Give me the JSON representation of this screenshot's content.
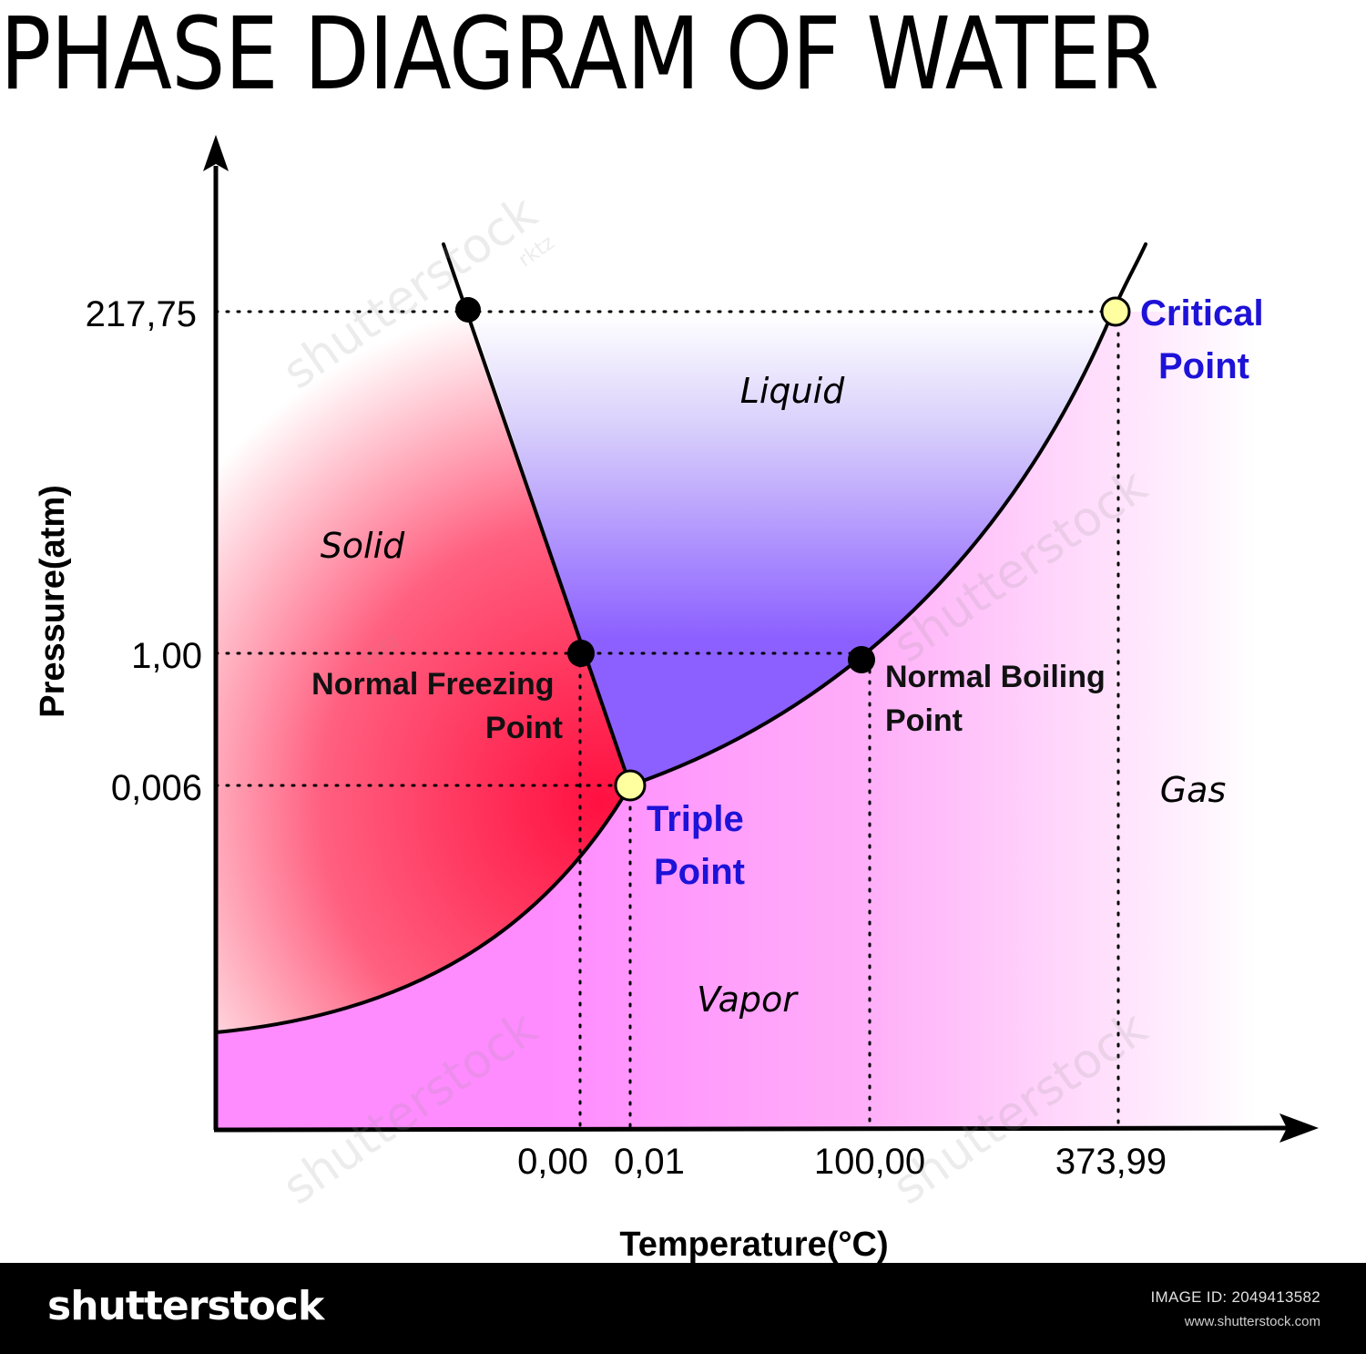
{
  "title": "PHASE DIAGRAM OF WATER",
  "axes": {
    "ylabel": "Pressure(atm)",
    "xlabel": "Temperature(°C)"
  },
  "y_ticks": [
    "217,75",
    "1,00",
    "0,006"
  ],
  "x_ticks": [
    "0,00",
    "0,01",
    "100,00",
    "373,99"
  ],
  "regions": {
    "solid": "Solid",
    "liquid": "Liquid",
    "vapor": "Vapor",
    "gas": "Gas"
  },
  "points": {
    "normal_freezing": [
      "Normal Freezing",
      "Point"
    ],
    "normal_boiling": [
      "Normal Boiling",
      "Point"
    ],
    "triple": [
      "Triple",
      "Point"
    ],
    "critical": [
      "Critical",
      "Point"
    ]
  },
  "colors": {
    "solid": "#ff1a4a",
    "liquid": "#8c60ff",
    "vapor": "#ff8cff",
    "special_point_fill": "#ffffa0",
    "special_point_label": "#1d12d8"
  },
  "watermarks": [
    "shutterstock",
    "rktz"
  ],
  "footer": {
    "logo": "shutterstock",
    "image_id": "IMAGE ID: 2049413582",
    "url": "www.shutterstock.com"
  }
}
